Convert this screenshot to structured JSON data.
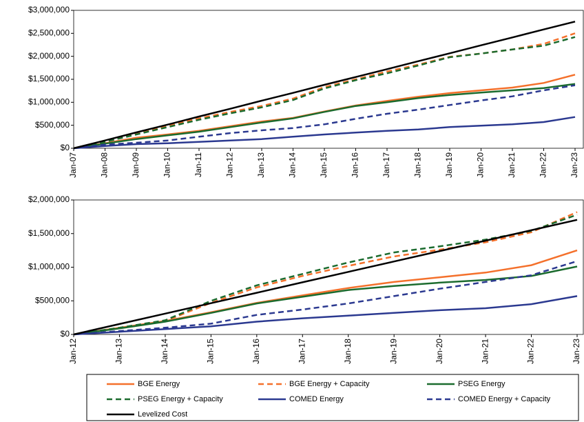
{
  "chart_data": [
    {
      "type": "line",
      "categories": [
        "Jan-07",
        "Jan-08",
        "Jan-09",
        "Jan-10",
        "Jan-11",
        "Jan-12",
        "Jan-13",
        "Jan-14",
        "Jan-15",
        "Jan-16",
        "Jan-17",
        "Jan-18",
        "Jan-19",
        "Jan-20",
        "Jan-21",
        "Jan-22",
        "Jan-23"
      ],
      "ylim": [
        0,
        3000000
      ],
      "yticks": [
        {
          "value": 0,
          "label": "$0"
        },
        {
          "value": 500000,
          "label": "$500,000"
        },
        {
          "value": 1000000,
          "label": "$1,000,000"
        },
        {
          "value": 1500000,
          "label": "$1,500,000"
        },
        {
          "value": 2000000,
          "label": "$2,000,000"
        },
        {
          "value": 2500000,
          "label": "$2,500,000"
        },
        {
          "value": 3000000,
          "label": "$3,000,000"
        }
      ],
      "series": [
        {
          "name": "BGE Energy",
          "color": "#f4702b",
          "dash": false,
          "values": [
            0,
            110000,
            230000,
            300000,
            380000,
            480000,
            580000,
            660000,
            800000,
            930000,
            1030000,
            1120000,
            1200000,
            1260000,
            1320000,
            1420000,
            1600000
          ]
        },
        {
          "name": "BGE Energy + Capacity",
          "color": "#f4702b",
          "dash": true,
          "values": [
            0,
            150000,
            320000,
            490000,
            650000,
            790000,
            920000,
            1080000,
            1330000,
            1500000,
            1670000,
            1820000,
            1990000,
            2060000,
            2150000,
            2270000,
            2500000
          ]
        },
        {
          "name": "PSEG Energy",
          "color": "#1b6b2e",
          "dash": false,
          "values": [
            0,
            100000,
            200000,
            280000,
            360000,
            460000,
            560000,
            650000,
            790000,
            920000,
            1000000,
            1090000,
            1160000,
            1210000,
            1260000,
            1310000,
            1400000
          ]
        },
        {
          "name": "PSEG Energy + Capacity",
          "color": "#1b6b2e",
          "dash": true,
          "values": [
            0,
            140000,
            300000,
            460000,
            620000,
            760000,
            890000,
            1050000,
            1300000,
            1480000,
            1630000,
            1800000,
            1980000,
            2060000,
            2150000,
            2230000,
            2420000
          ]
        },
        {
          "name": "COMED Energy",
          "color": "#2b3990",
          "dash": false,
          "values": [
            0,
            50000,
            90000,
            110000,
            140000,
            170000,
            200000,
            250000,
            300000,
            340000,
            380000,
            410000,
            460000,
            490000,
            520000,
            570000,
            680000
          ]
        },
        {
          "name": "COMED Energy + Capacity",
          "color": "#2b3990",
          "dash": true,
          "values": [
            0,
            80000,
            120000,
            170000,
            250000,
            330000,
            390000,
            440000,
            520000,
            640000,
            750000,
            840000,
            940000,
            1040000,
            1130000,
            1260000,
            1370000
          ]
        },
        {
          "name": "Levelized Cost",
          "color": "#000000",
          "dash": false,
          "values": [
            0,
            170000,
            345000,
            515000,
            690000,
            860000,
            1035000,
            1205000,
            1380000,
            1550000,
            1720000,
            1895000,
            2065000,
            2240000,
            2410000,
            2585000,
            2755000
          ]
        }
      ]
    },
    {
      "type": "line",
      "categories": [
        "Jan-12",
        "Jan-13",
        "Jan-14",
        "Jan-15",
        "Jan-16",
        "Jan-17",
        "Jan-18",
        "Jan-19",
        "Jan-20",
        "Jan-21",
        "Jan-22",
        "Jan-23"
      ],
      "ylim": [
        0,
        2000000
      ],
      "yticks": [
        {
          "value": 0,
          "label": "$0"
        },
        {
          "value": 500000,
          "label": "$500,000"
        },
        {
          "value": 1000000,
          "label": "$1,000,000"
        },
        {
          "value": 1500000,
          "label": "$1,500,000"
        },
        {
          "value": 2000000,
          "label": "$2,000,000"
        }
      ],
      "series": [
        {
          "color": "#f4702b",
          "dash": false,
          "values": [
            0,
            100000,
            200000,
            330000,
            470000,
            580000,
            690000,
            780000,
            850000,
            920000,
            1030000,
            1250000
          ]
        },
        {
          "color": "#f4702b",
          "dash": true,
          "values": [
            0,
            100000,
            200000,
            470000,
            700000,
            870000,
            1020000,
            1160000,
            1260000,
            1370000,
            1520000,
            1820000
          ]
        },
        {
          "color": "#1b6b2e",
          "dash": false,
          "values": [
            0,
            90000,
            190000,
            320000,
            460000,
            560000,
            660000,
            720000,
            770000,
            810000,
            870000,
            1010000
          ]
        },
        {
          "color": "#1b6b2e",
          "dash": true,
          "values": [
            0,
            100000,
            210000,
            500000,
            730000,
            900000,
            1070000,
            1220000,
            1310000,
            1410000,
            1540000,
            1780000
          ]
        },
        {
          "color": "#2b3990",
          "dash": false,
          "values": [
            0,
            40000,
            80000,
            120000,
            190000,
            240000,
            280000,
            320000,
            360000,
            390000,
            450000,
            570000
          ]
        },
        {
          "color": "#2b3990",
          "dash": true,
          "values": [
            0,
            50000,
            100000,
            160000,
            290000,
            370000,
            460000,
            570000,
            680000,
            780000,
            880000,
            1090000
          ]
        },
        {
          "color": "#000000",
          "dash": false,
          "values": [
            0,
            155000,
            310000,
            465000,
            620000,
            775000,
            930000,
            1085000,
            1240000,
            1395000,
            1550000,
            1705000
          ]
        }
      ]
    }
  ]
}
